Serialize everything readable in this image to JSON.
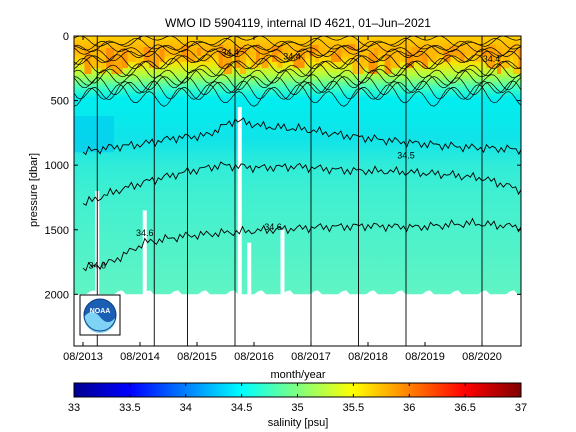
{
  "title": "WMO ID 5904119, internal ID 4621, 01–Jun–2021",
  "chart_data": {
    "type": "heatmap",
    "title": "WMO ID 5904119, internal ID 4621, 01–Jun–2021",
    "xlabel": "month/year",
    "ylabel": "pressure [dbar]",
    "x_ticks": [
      "08/2013",
      "08/2014",
      "08/2015",
      "08/2016",
      "08/2017",
      "08/2018",
      "08/2019",
      "08/2020"
    ],
    "x_range": [
      "2013-08",
      "2021-05"
    ],
    "y_ticks": [
      0,
      500,
      1000,
      1500,
      2000
    ],
    "ylim": [
      0,
      2400
    ],
    "y_reversed": true,
    "profile_max_pressure": 2000,
    "colorbar": {
      "label": "salinity [psu]",
      "range": [
        33,
        37
      ],
      "ticks": [
        "33",
        "33.5",
        "34",
        "34.5",
        "35",
        "35.5",
        "36",
        "36.5",
        "37"
      ],
      "colormap": "jet"
    },
    "vertical_lines": [
      "2013-11",
      "2014-11",
      "2015-06",
      "2016-04",
      "2017-08",
      "2018-06",
      "2019-04",
      "2020-08"
    ],
    "contour_labels": [
      {
        "text": "34.4",
        "x": "2016-03",
        "y": 150
      },
      {
        "text": "34.4",
        "x": "2017-04",
        "y": 180
      },
      {
        "text": "34.4",
        "x": "2020-10",
        "y": 200
      },
      {
        "text": "34.5",
        "x": "2019-04",
        "y": 950
      },
      {
        "text": "34.6",
        "x": "2014-09",
        "y": 1550
      },
      {
        "text": "34.6",
        "x": "2016-12",
        "y": 1500
      },
      {
        "text": "34.6",
        "x": "2013-11",
        "y": 1800
      }
    ],
    "contour_levels": [
      {
        "value": 34.5,
        "depths": [
          {
            "x": "2013-08",
            "y": 900
          },
          {
            "x": "2014-02",
            "y": 860
          },
          {
            "x": "2014-08",
            "y": 840
          },
          {
            "x": "2015-03",
            "y": 790
          },
          {
            "x": "2015-10",
            "y": 770
          },
          {
            "x": "2016-04",
            "y": 650
          },
          {
            "x": "2016-10",
            "y": 700
          },
          {
            "x": "2017-06",
            "y": 720
          },
          {
            "x": "2018-01",
            "y": 760
          },
          {
            "x": "2018-10",
            "y": 800
          },
          {
            "x": "2019-06",
            "y": 830
          },
          {
            "x": "2020-04",
            "y": 860
          },
          {
            "x": "2021-05",
            "y": 880
          }
        ]
      },
      {
        "value": 34.55,
        "depths": [
          {
            "x": "2013-08",
            "y": 1300
          },
          {
            "x": "2014-03",
            "y": 1200
          },
          {
            "x": "2014-10",
            "y": 1120
          },
          {
            "x": "2015-06",
            "y": 1050
          },
          {
            "x": "2016-01",
            "y": 1000
          },
          {
            "x": "2016-09",
            "y": 1020
          },
          {
            "x": "2017-05",
            "y": 1010
          },
          {
            "x": "2018-03",
            "y": 1040
          },
          {
            "x": "2019-02",
            "y": 1050
          },
          {
            "x": "2019-12",
            "y": 1070
          },
          {
            "x": "2020-08",
            "y": 1100
          },
          {
            "x": "2021-05",
            "y": 1200
          }
        ]
      },
      {
        "value": 34.6,
        "depths": [
          {
            "x": "2013-08",
            "y": 1800
          },
          {
            "x": "2014-02",
            "y": 1750
          },
          {
            "x": "2014-09",
            "y": 1600
          },
          {
            "x": "2015-05",
            "y": 1550
          },
          {
            "x": "2016-03",
            "y": 1520
          },
          {
            "x": "2016-12",
            "y": 1500
          },
          {
            "x": "2017-10",
            "y": 1480
          },
          {
            "x": "2018-08",
            "y": 1470
          },
          {
            "x": "2019-06",
            "y": 1480
          },
          {
            "x": "2020-06",
            "y": 1450
          },
          {
            "x": "2021-05",
            "y": 1480
          }
        ]
      }
    ],
    "data_gaps": [
      {
        "x": "2013-11",
        "y_top": 1200,
        "y_bottom": 2000
      },
      {
        "x": "2014-09",
        "y_top": 1350,
        "y_bottom": 2000
      },
      {
        "x": "2016-05",
        "y_top": 550,
        "y_bottom": 2000
      },
      {
        "x": "2016-07",
        "y_top": 1600,
        "y_bottom": 2000
      },
      {
        "x": "2017-02",
        "y_top": 1500,
        "y_bottom": 2000
      }
    ],
    "logo": "NOAA"
  }
}
